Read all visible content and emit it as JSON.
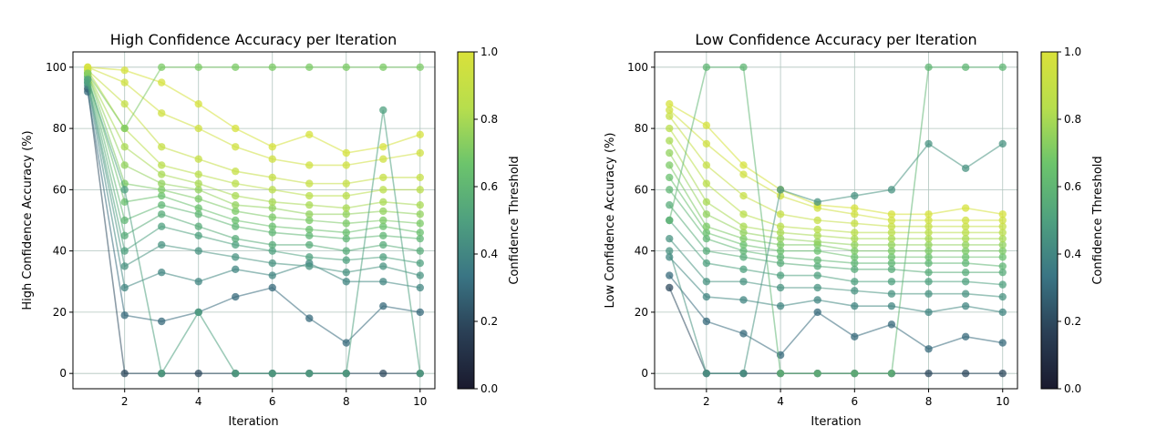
{
  "chart_data": [
    {
      "type": "scatter",
      "title": "High Confidence Accuracy per Iteration",
      "xlabel": "Iteration",
      "ylabel": "High Confidence Accuracy (%)",
      "xlim": [
        0.6,
        10.4
      ],
      "ylim": [
        -5,
        105
      ],
      "xticks": [
        2,
        4,
        6,
        8,
        10
      ],
      "yticks": [
        0,
        20,
        40,
        60,
        80,
        100
      ],
      "grid": true,
      "colorbar": {
        "label": "Confidence Threshold",
        "range": [
          0.0,
          1.0
        ],
        "ticks": [
          0.0,
          0.2,
          0.4,
          0.6,
          0.8,
          1.0
        ],
        "tick_labels": [
          "0.0",
          "0.2",
          "0.4",
          "0.6",
          "0.8",
          "1.0"
        ]
      },
      "colormap": [
        "#1a1a2e",
        "#2a3f55",
        "#3a7584",
        "#4fa07f",
        "#6cc46c",
        "#b7de4d",
        "#d9e13a"
      ],
      "series": [
        {
          "threshold": 0.2,
          "values": [
            93,
            0,
            0,
            0,
            0,
            0,
            0,
            0,
            0,
            0
          ]
        },
        {
          "threshold": 0.3,
          "values": [
            92,
            19,
            17,
            20,
            25,
            28,
            18,
            10,
            22,
            20
          ]
        },
        {
          "threshold": 0.4,
          "values": [
            94,
            28,
            33,
            30,
            34,
            32,
            36,
            30,
            30,
            28
          ]
        },
        {
          "threshold": 0.45,
          "values": [
            95,
            35,
            42,
            40,
            38,
            36,
            35,
            33,
            35,
            32
          ]
        },
        {
          "threshold": 0.5,
          "values": [
            95,
            40,
            48,
            45,
            42,
            40,
            38,
            37,
            38,
            36
          ]
        },
        {
          "threshold": 0.55,
          "values": [
            96,
            45,
            52,
            48,
            44,
            42,
            42,
            40,
            42,
            40
          ]
        },
        {
          "threshold": 0.6,
          "values": [
            97,
            50,
            55,
            52,
            48,
            46,
            45,
            44,
            45,
            44
          ]
        },
        {
          "threshold": 0.65,
          "values": [
            97,
            56,
            58,
            54,
            50,
            48,
            47,
            46,
            48,
            46
          ]
        },
        {
          "threshold": 0.7,
          "values": [
            98,
            62,
            60,
            57,
            53,
            51,
            50,
            49,
            50,
            49
          ]
        },
        {
          "threshold": 0.75,
          "values": [
            98,
            68,
            62,
            60,
            55,
            54,
            52,
            52,
            53,
            52
          ]
        },
        {
          "threshold": 0.8,
          "values": [
            98,
            74,
            65,
            62,
            58,
            56,
            55,
            54,
            56,
            55
          ]
        },
        {
          "threshold": 0.85,
          "values": [
            99,
            80,
            68,
            65,
            62,
            60,
            58,
            58,
            60,
            60
          ]
        },
        {
          "threshold": 0.9,
          "values": [
            99,
            88,
            74,
            70,
            66,
            64,
            62,
            62,
            64,
            64
          ]
        },
        {
          "threshold": 0.95,
          "values": [
            100,
            95,
            85,
            80,
            74,
            70,
            68,
            68,
            70,
            72
          ]
        },
        {
          "threshold": 0.98,
          "values": [
            100,
            99,
            95,
            88,
            80,
            74,
            78,
            72,
            74,
            78
          ]
        },
        {
          "threshold": 0.7,
          "values": [
            98,
            80,
            100,
            100,
            100,
            100,
            100,
            100,
            100,
            100
          ]
        },
        {
          "threshold": 0.5,
          "values": [
            96,
            60,
            0,
            20,
            0,
            0,
            0,
            0,
            86,
            0
          ]
        }
      ]
    },
    {
      "type": "scatter",
      "title": "Low Confidence Accuracy per Iteration",
      "xlabel": "Iteration",
      "ylabel": "Low Confidence Accuracy (%)",
      "xlim": [
        0.6,
        10.4
      ],
      "ylim": [
        -5,
        105
      ],
      "xticks": [
        2,
        4,
        6,
        8,
        10
      ],
      "yticks": [
        0,
        20,
        40,
        60,
        80,
        100
      ],
      "grid": true,
      "colorbar": {
        "label": "Confidence Threshold",
        "range": [
          0.0,
          1.0
        ],
        "ticks": [
          0.0,
          0.2,
          0.4,
          0.6,
          0.8,
          1.0
        ],
        "tick_labels": [
          "0.0",
          "0.2",
          "0.4",
          "0.6",
          "0.8",
          "1.0"
        ]
      },
      "colormap": [
        "#1a1a2e",
        "#2a3f55",
        "#3a7584",
        "#4fa07f",
        "#6cc46c",
        "#b7de4d",
        "#d9e13a"
      ],
      "series": [
        {
          "threshold": 0.2,
          "values": [
            28,
            0,
            0,
            0,
            0,
            0,
            0,
            0,
            0,
            0
          ]
        },
        {
          "threshold": 0.3,
          "values": [
            32,
            17,
            13,
            6,
            20,
            12,
            16,
            8,
            12,
            10
          ]
        },
        {
          "threshold": 0.4,
          "values": [
            38,
            25,
            24,
            22,
            24,
            22,
            22,
            20,
            22,
            20
          ]
        },
        {
          "threshold": 0.45,
          "values": [
            44,
            30,
            30,
            28,
            28,
            27,
            26,
            26,
            26,
            25
          ]
        },
        {
          "threshold": 0.5,
          "values": [
            50,
            36,
            34,
            32,
            32,
            30,
            30,
            30,
            30,
            29
          ]
        },
        {
          "threshold": 0.55,
          "values": [
            55,
            40,
            38,
            36,
            35,
            34,
            34,
            33,
            33,
            33
          ]
        },
        {
          "threshold": 0.6,
          "values": [
            60,
            44,
            40,
            38,
            37,
            36,
            36,
            36,
            36,
            35
          ]
        },
        {
          "threshold": 0.65,
          "values": [
            64,
            46,
            42,
            40,
            40,
            38,
            38,
            38,
            38,
            38
          ]
        },
        {
          "threshold": 0.7,
          "values": [
            68,
            48,
            44,
            42,
            42,
            40,
            40,
            40,
            40,
            40
          ]
        },
        {
          "threshold": 0.75,
          "values": [
            72,
            52,
            46,
            44,
            43,
            42,
            42,
            42,
            42,
            42
          ]
        },
        {
          "threshold": 0.8,
          "values": [
            76,
            56,
            48,
            46,
            45,
            44,
            44,
            44,
            44,
            44
          ]
        },
        {
          "threshold": 0.85,
          "values": [
            80,
            62,
            52,
            48,
            47,
            46,
            46,
            46,
            46,
            46
          ]
        },
        {
          "threshold": 0.9,
          "values": [
            84,
            68,
            58,
            52,
            50,
            49,
            48,
            48,
            48,
            48
          ]
        },
        {
          "threshold": 0.95,
          "values": [
            86,
            75,
            65,
            58,
            54,
            52,
            50,
            50,
            50,
            50
          ]
        },
        {
          "threshold": 0.98,
          "values": [
            88,
            81,
            68,
            60,
            55,
            54,
            52,
            52,
            54,
            52
          ]
        },
        {
          "threshold": 0.6,
          "values": [
            50,
            100,
            100,
            0,
            0,
            0,
            0,
            100,
            100,
            100
          ]
        },
        {
          "threshold": 0.45,
          "values": [
            40,
            0,
            0,
            60,
            56,
            58,
            60,
            75,
            67,
            75
          ]
        }
      ]
    }
  ]
}
